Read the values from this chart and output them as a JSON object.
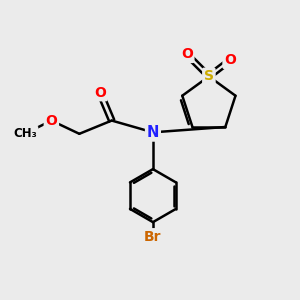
{
  "bg_color": "#ebebeb",
  "bond_width": 1.8,
  "atom_colors": {
    "O": "#ff0000",
    "N": "#2020ff",
    "S": "#ccaa00",
    "Br": "#cc6600",
    "C": "#000000"
  },
  "figsize": [
    3.0,
    3.0
  ],
  "dpi": 100,
  "xlim": [
    0,
    10
  ],
  "ylim": [
    0,
    10
  ]
}
